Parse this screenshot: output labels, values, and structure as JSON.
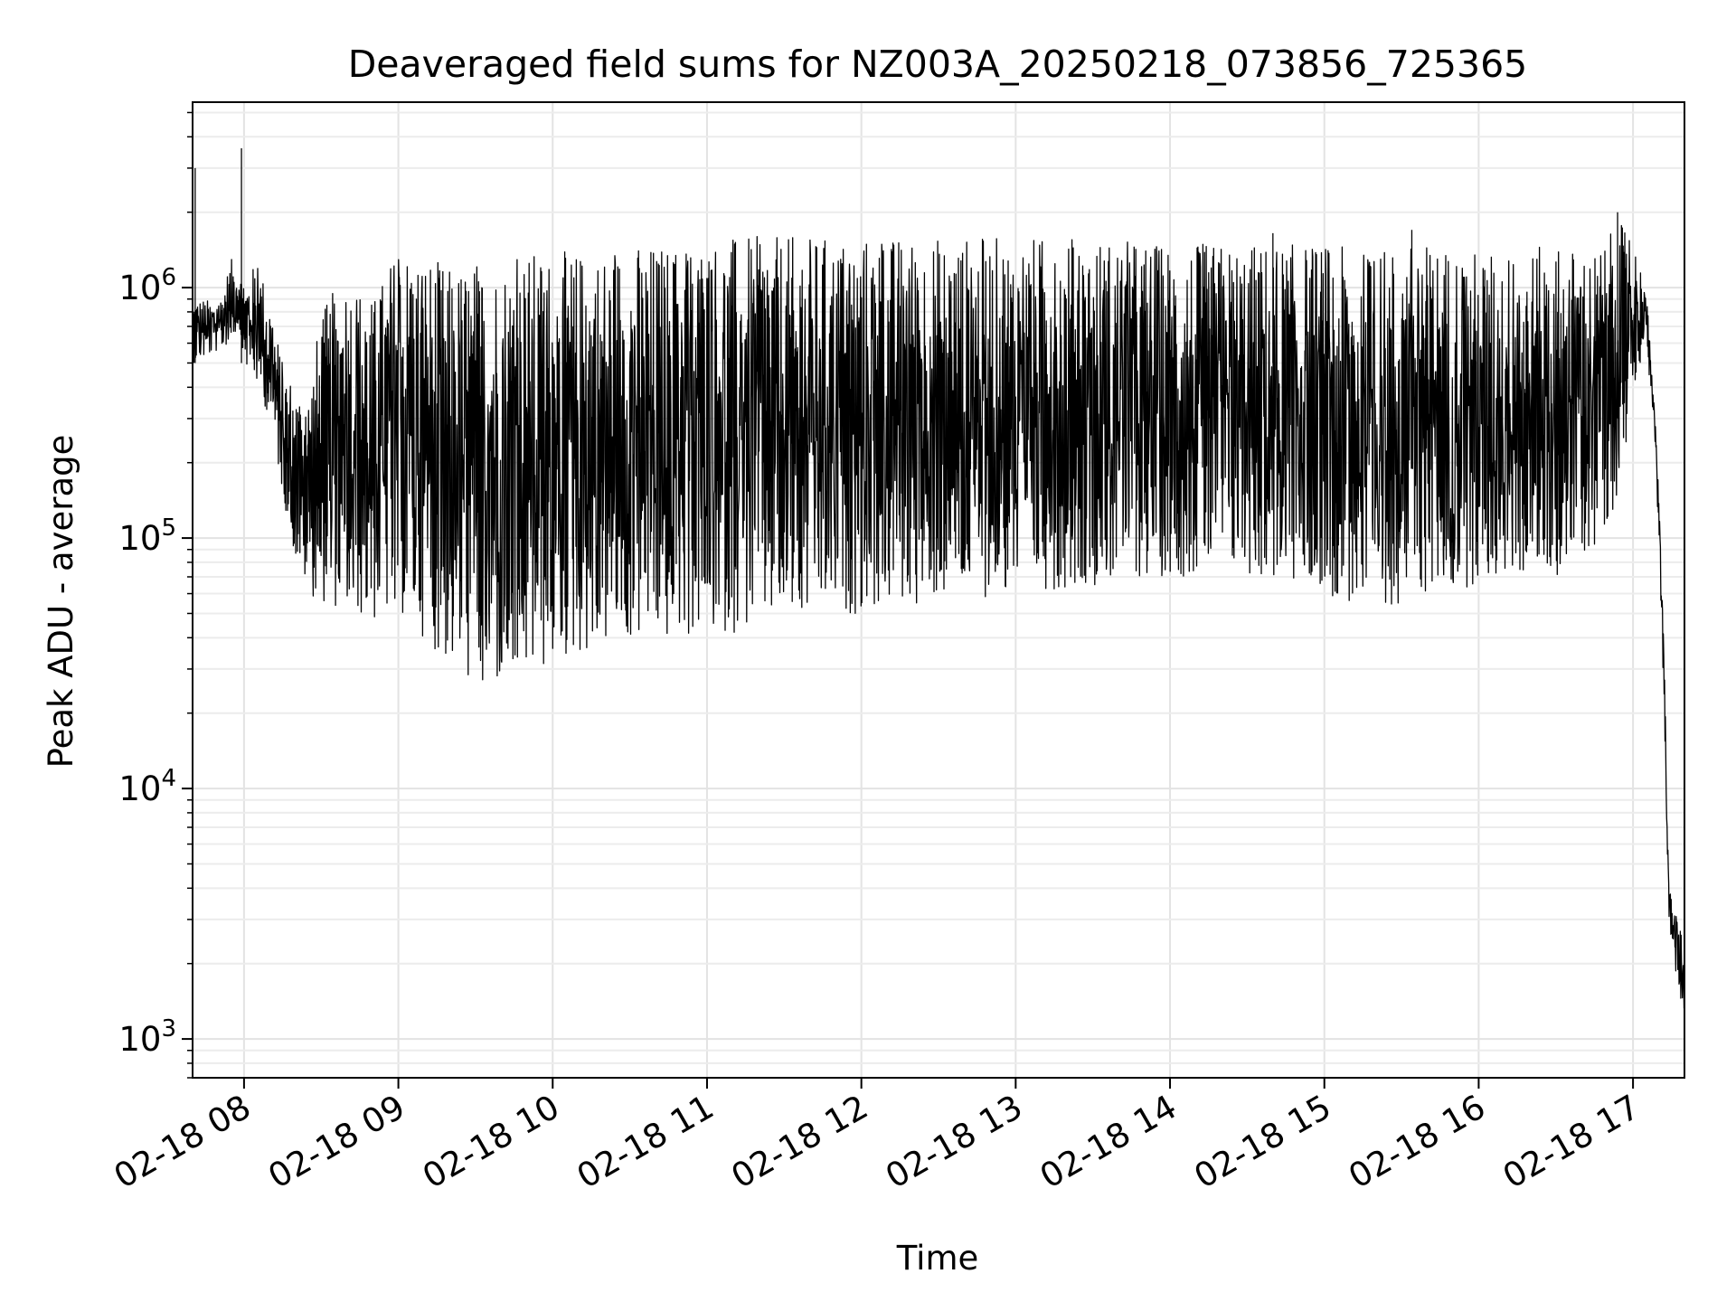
{
  "chart_data": {
    "type": "line",
    "title": "Deaveraged field sums for NZ003A_20250218_073856_725365",
    "xlabel": "Time",
    "ylabel": "Peak ADU - average",
    "y_scale": "log",
    "ylim": [
      700,
      5500000
    ],
    "xlim": [
      "2025-02-18 07:40",
      "2025-02-18 17:20"
    ],
    "grid": true,
    "line_color": "#000000",
    "x_ticks": [
      "02-18 08",
      "02-18 09",
      "02-18 10",
      "02-18 11",
      "02-18 12",
      "02-18 13",
      "02-18 14",
      "02-18 15",
      "02-18 16",
      "02-18 17"
    ],
    "y_ticks": [
      {
        "base": "10",
        "exp": "3",
        "value": 1000
      },
      {
        "base": "10",
        "exp": "4",
        "value": 10000
      },
      {
        "base": "10",
        "exp": "5",
        "value": 100000
      },
      {
        "base": "10",
        "exp": "6",
        "value": 1000000
      }
    ],
    "series": [
      {
        "x": [
          "2025-02-18 07:40",
          "2025-02-18 07:45",
          "2025-02-18 07:50",
          "2025-02-18 07:55",
          "2025-02-18 07:58",
          "2025-02-18 08:00",
          "2025-02-18 08:05",
          "2025-02-18 08:10",
          "2025-02-18 08:15",
          "2025-02-18 08:20",
          "2025-02-18 08:25",
          "2025-02-18 08:30",
          "2025-02-18 08:40",
          "2025-02-18 08:50",
          "2025-02-18 09:00",
          "2025-02-18 09:10",
          "2025-02-18 09:20",
          "2025-02-18 09:30",
          "2025-02-18 09:40",
          "2025-02-18 09:50",
          "2025-02-18 10:00",
          "2025-02-18 10:15",
          "2025-02-18 10:30",
          "2025-02-18 10:45",
          "2025-02-18 11:00",
          "2025-02-18 11:30",
          "2025-02-18 12:00",
          "2025-02-18 12:30",
          "2025-02-18 13:00",
          "2025-02-18 13:30",
          "2025-02-18 14:00",
          "2025-02-18 14:30",
          "2025-02-18 15:00",
          "2025-02-18 15:15",
          "2025-02-18 15:30",
          "2025-02-18 15:45",
          "2025-02-18 16:00",
          "2025-02-18 16:15",
          "2025-02-18 16:30",
          "2025-02-18 16:45",
          "2025-02-18 16:55",
          "2025-02-18 17:00",
          "2025-02-18 17:05",
          "2025-02-18 17:08",
          "2025-02-18 17:10",
          "2025-02-18 17:12",
          "2025-02-18 17:14",
          "2025-02-18 17:16",
          "2025-02-18 17:18",
          "2025-02-18 17:20"
        ],
        "low": [
          500000,
          520000,
          560000,
          600000,
          700000,
          500000,
          400000,
          300000,
          150000,
          80000,
          60000,
          55000,
          50000,
          45000,
          50000,
          40000,
          30000,
          25000,
          24000,
          26000,
          30000,
          35000,
          38000,
          38000,
          40000,
          45000,
          50000,
          55000,
          60000,
          65000,
          70000,
          70000,
          60000,
          50000,
          55000,
          60000,
          65000,
          70000,
          70000,
          90000,
          150000,
          400000,
          600000,
          300000,
          100000,
          20000,
          3000,
          2000,
          1500,
          1000
        ],
        "high": [
          900000,
          900000,
          850000,
          1300000,
          1250000,
          1000000,
          1300000,
          900000,
          500000,
          400000,
          400000,
          800000,
          1200000,
          900000,
          1500000,
          1400000,
          1200000,
          1300000,
          1300000,
          1400000,
          1400000,
          1400000,
          1500000,
          1500000,
          1600000,
          1600000,
          1600000,
          1600000,
          1600000,
          1600000,
          1500000,
          1500000,
          1500000,
          1400000,
          1500000,
          1500000,
          1400000,
          1400000,
          1500000,
          1400000,
          1800000,
          1600000,
          1000000,
          400000,
          150000,
          40000,
          4000,
          3500,
          3000,
          2000
        ]
      }
    ],
    "spikes": [
      {
        "x": "2025-02-18 07:41",
        "y": 3000000
      },
      {
        "x": "2025-02-18 07:59",
        "y": 3600000
      },
      {
        "x": "2025-02-18 16:54",
        "y": 2000000
      },
      {
        "x": "2025-02-18 15:34",
        "y": 1700000
      },
      {
        "x": "2025-02-18 14:40",
        "y": 1650000
      }
    ]
  }
}
